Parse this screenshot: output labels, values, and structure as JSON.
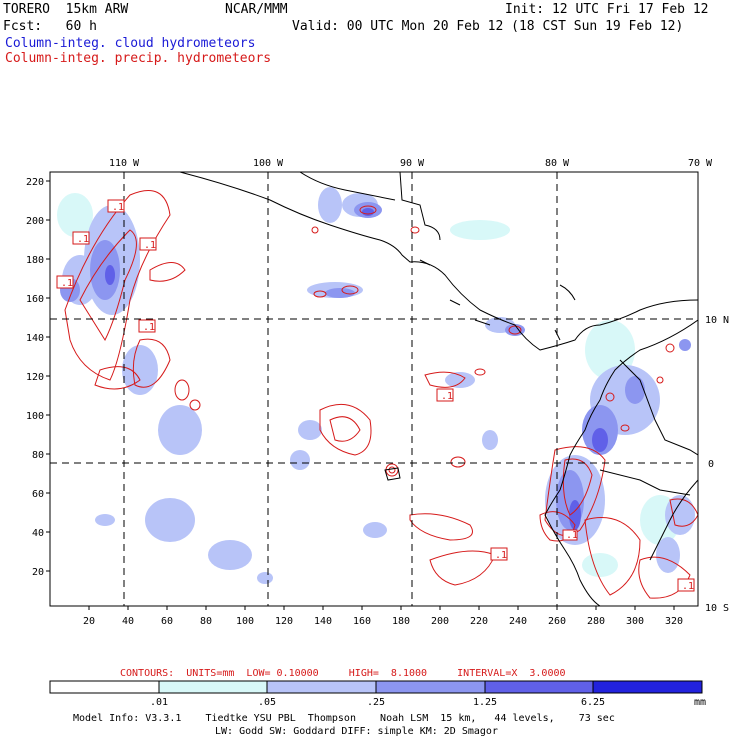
{
  "header": {
    "model": "TORERO  15km ARW",
    "org": "NCAR/MMM",
    "init": "Init: 12 UTC Fri 17 Feb 12",
    "fcst": "Fcst:   60 h",
    "valid": "Valid: 00 UTC Mon 20 Feb 12 (18 CST Sun 19 Feb 12)",
    "field1": "Column-integ. cloud hydrometeors",
    "field2": "Column-integ. precip. hydrometeors"
  },
  "map": {
    "lon_labels": [
      "110 W",
      "100 W",
      "90 W",
      "80 W",
      "70 W"
    ],
    "lat_labels": [
      "10 N",
      "0",
      "10 S"
    ],
    "y_ticks": [
      "220",
      "200",
      "180",
      "160",
      "140",
      "120",
      "100",
      "80",
      "60",
      "40",
      "20"
    ],
    "x_ticks": [
      "20",
      "40",
      "60",
      "80",
      "100",
      "120",
      "140",
      "160",
      "180",
      "200",
      "220",
      "240",
      "260",
      "280",
      "300",
      "320"
    ],
    "contour_labels": [
      ".1",
      ".1",
      ".1",
      ".1",
      ".1",
      ".1",
      ".1",
      ".1",
      ".1"
    ]
  },
  "contours_info": "CONTOURS:  UNITS=mm  LOW= 0.10000     HIGH=  8.1000     INTERVAL=X  3.0000",
  "colorbar": {
    "labels": [
      ".01",
      ".05",
      ".25",
      "1.25",
      "6.25"
    ],
    "unit": "mm",
    "colors": [
      "#ffffff",
      "#d8f8f8",
      "#b8c4f8",
      "#8c96f0",
      "#6060e8",
      "#2222dd"
    ]
  },
  "footer": {
    "line1": "Model Info: V3.3.1    Tiedtke YSU PBL  Thompson    Noah LSM  15 km,   44 levels,    73 sec",
    "line2": "LW: Godd SW: Goddard DIFF: simple KM: 2D Smagor"
  }
}
